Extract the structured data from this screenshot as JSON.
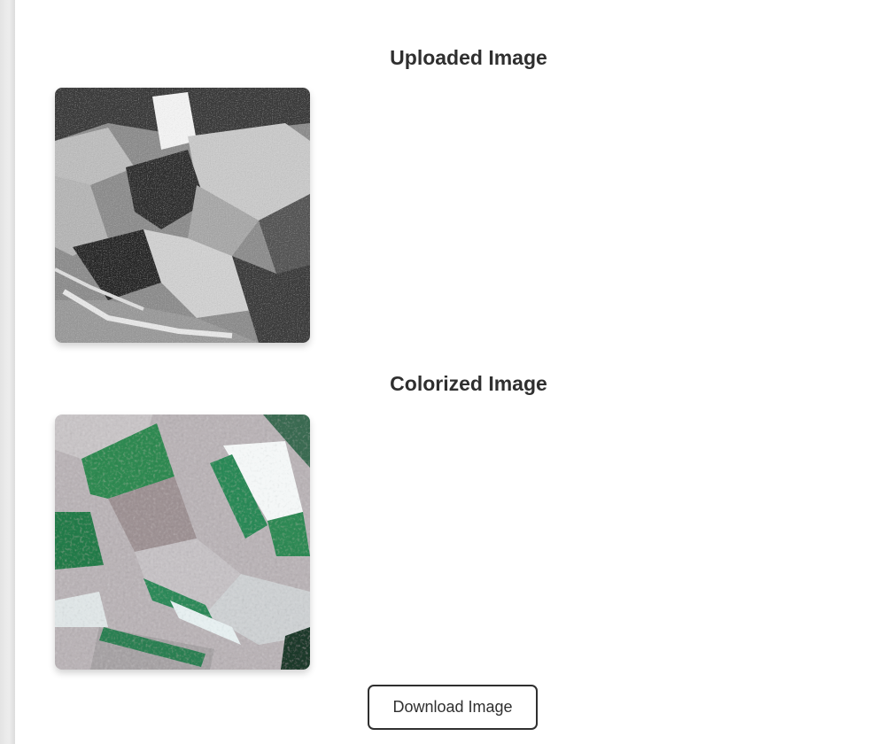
{
  "sections": {
    "uploaded": {
      "title": "Uploaded Image"
    },
    "colorized": {
      "title": "Colorized Image"
    }
  },
  "actions": {
    "download_label": "Download Image"
  },
  "colors": {
    "text": "#2f2f2f",
    "button_border": "#2f2f2f",
    "background": "#ffffff",
    "field_green": "#1f8a4f"
  }
}
